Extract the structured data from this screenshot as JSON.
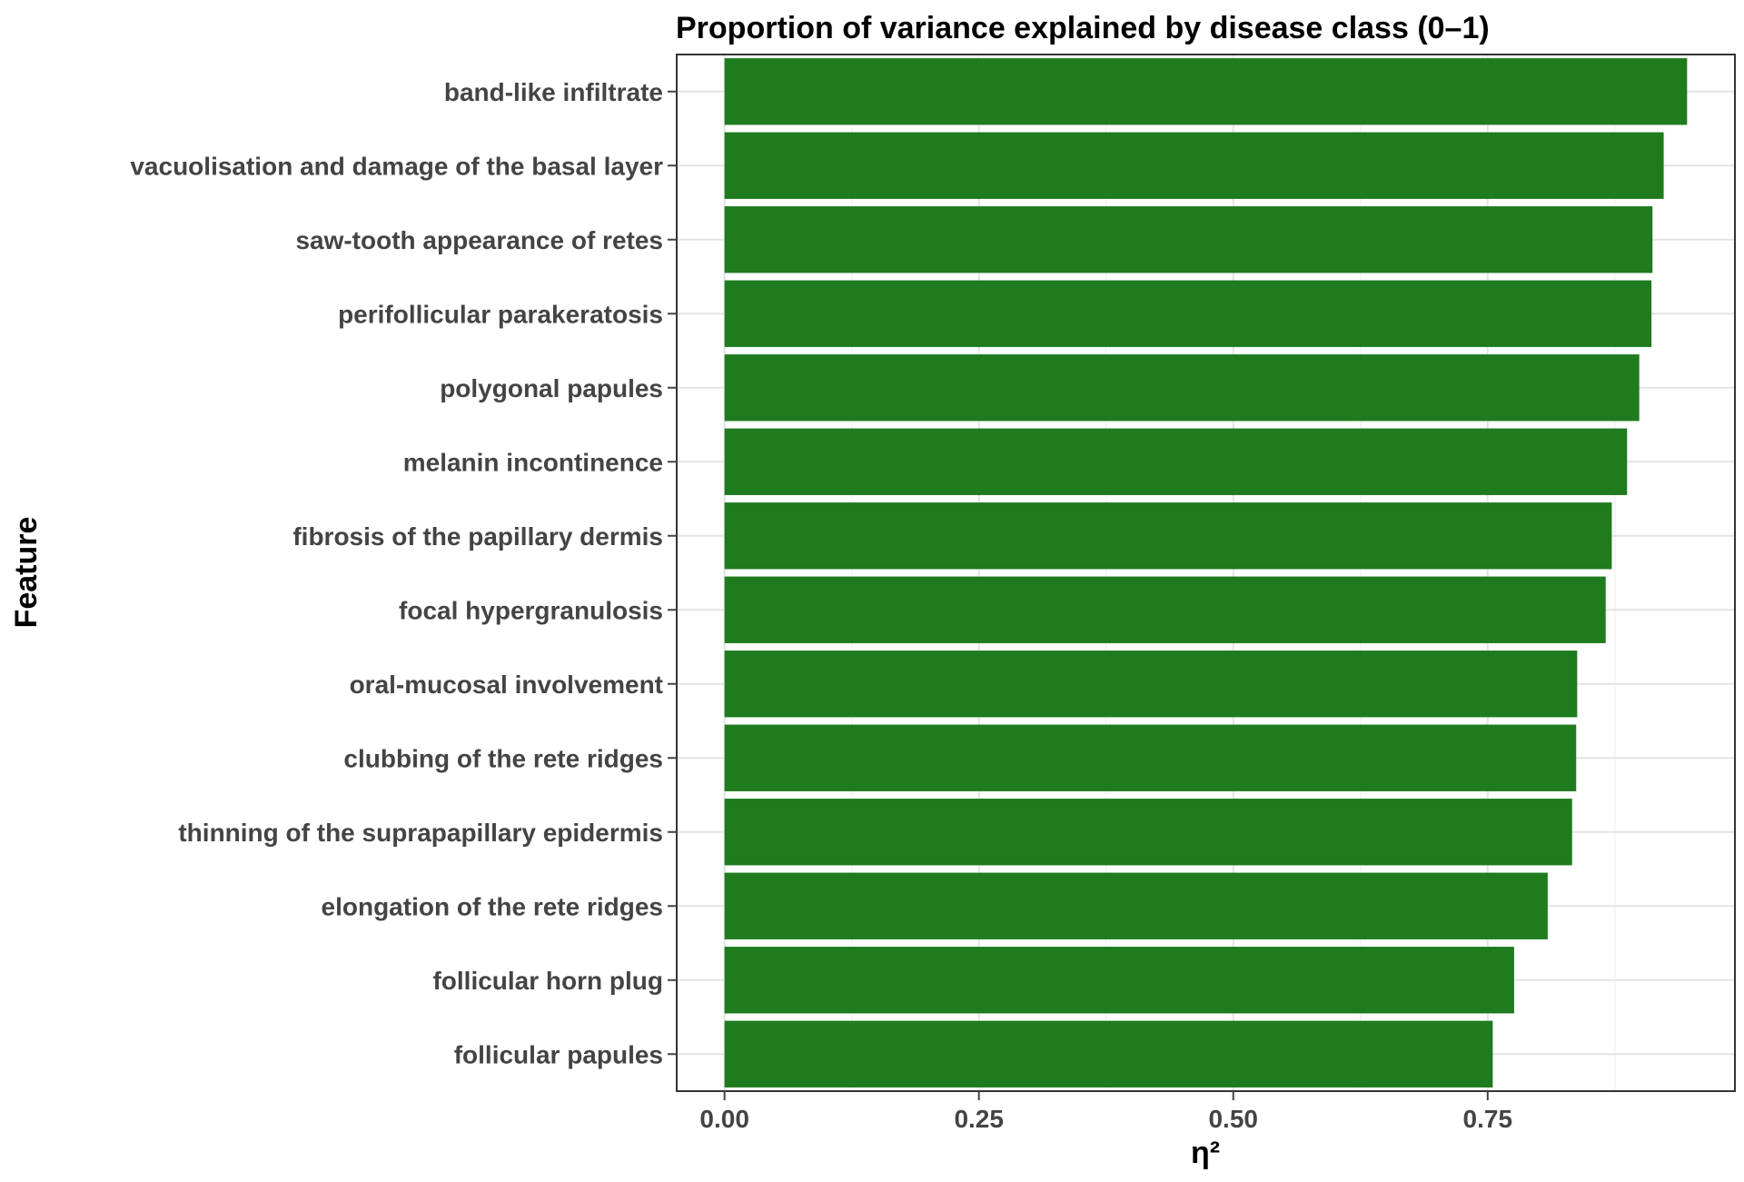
{
  "chart_data": {
    "type": "bar",
    "orientation": "horizontal",
    "title": "Proportion of variance explained by disease class (0–1)",
    "xlabel": "η²",
    "ylabel": "Feature",
    "xlim": [
      -0.047,
      0.993
    ],
    "xticks": [
      0.0,
      0.25,
      0.5,
      0.75
    ],
    "xtick_labels": [
      "0.00",
      "0.25",
      "0.50",
      "0.75"
    ],
    "grid": true,
    "bar_color": "#1e7b1e",
    "categories": [
      "band-like infiltrate",
      "vacuolisation and damage of the basal layer",
      "saw-tooth appearance of retes",
      "perifollicular parakeratosis",
      "polygonal papules",
      "melanin incontinence",
      "fibrosis of the papillary dermis",
      "focal hypergranulosis",
      "oral-mucosal involvement",
      "clubbing of the rete ridges",
      "thinning of the suprapapillary epidermis",
      "elongation of the rete ridges",
      "follicular horn plug",
      "follicular papules"
    ],
    "values": [
      0.946,
      0.923,
      0.912,
      0.911,
      0.899,
      0.887,
      0.872,
      0.866,
      0.838,
      0.837,
      0.833,
      0.809,
      0.776,
      0.755
    ]
  }
}
